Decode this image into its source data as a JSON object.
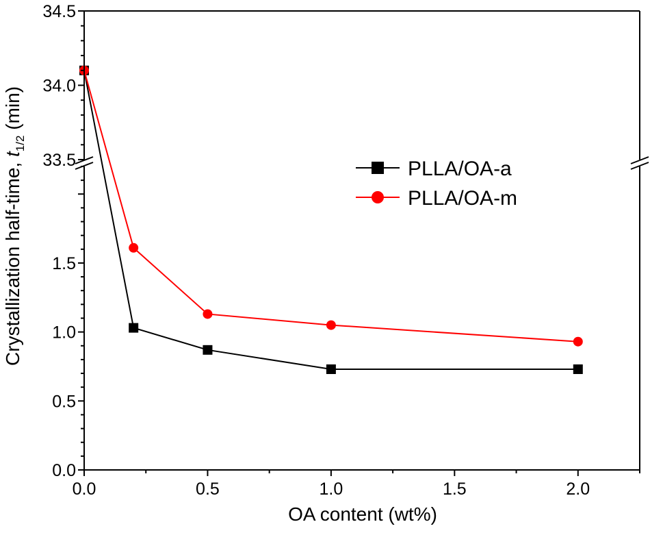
{
  "chart_data": {
    "type": "line",
    "title": "",
    "xlabel": "OA content (wt%)",
    "ylabel": {
      "prefix": "Crystallization half-time, ",
      "symbol": "t",
      "subscript": "1/2",
      "suffix": " (min)"
    },
    "x_range": [
      0.0,
      2.25
    ],
    "y_range_lower": [
      0.0,
      2.2
    ],
    "y_range_upper": [
      33.5,
      34.5
    ],
    "axis_break": "between 2.2 and 33.5 on the y axis",
    "x_tick_labels": [
      "0.0",
      "0.5",
      "1.0",
      "1.5",
      "2.0"
    ],
    "x_ticks": [
      0.0,
      0.5,
      1.0,
      1.5,
      2.0
    ],
    "y_ticks_lower": [
      0.0,
      0.5,
      1.0,
      1.5
    ],
    "y_tick_labels_lower": [
      "0.0",
      "0.5",
      "1.0",
      "1.5"
    ],
    "y_ticks_upper": [
      33.5,
      34.0,
      34.5
    ],
    "y_tick_labels_upper": [
      "33.5",
      "34.0",
      "34.5"
    ],
    "grid": false,
    "legend_position": "upper-right",
    "series": [
      {
        "name": "PLLA/OA-a",
        "color": "#000000",
        "marker": "square",
        "x": [
          0.0,
          0.2,
          0.5,
          1.0,
          2.0
        ],
        "y": [
          34.1,
          1.03,
          0.87,
          0.73,
          0.73
        ]
      },
      {
        "name": "PLLA/OA-m",
        "color": "#ff0000",
        "marker": "circle",
        "x": [
          0.0,
          0.2,
          0.5,
          1.0,
          2.0
        ],
        "y": [
          34.1,
          1.61,
          1.13,
          1.05,
          0.93
        ]
      }
    ]
  }
}
